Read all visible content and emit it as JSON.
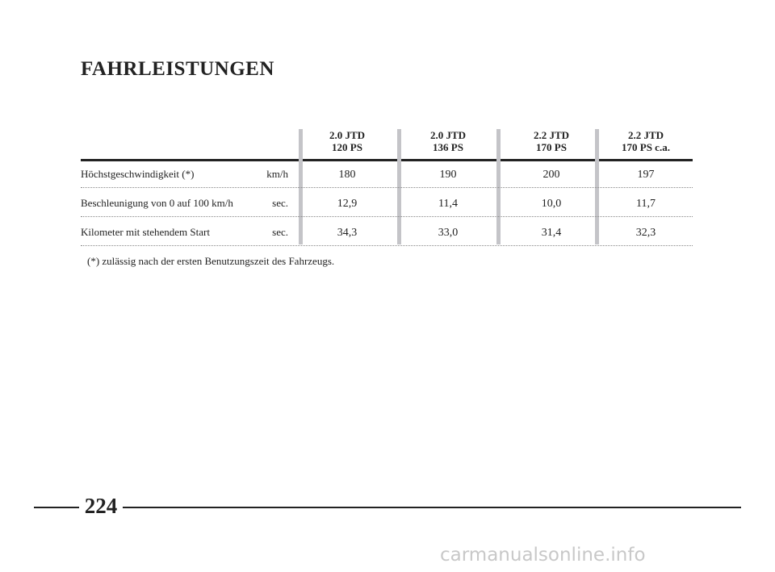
{
  "title": "FAHRLEISTUNGEN",
  "table": {
    "columns": [
      [
        "2.0 JTD",
        "120 PS"
      ],
      [
        "2.0 JTD",
        "136 PS"
      ],
      [
        "2.2 JTD",
        "170 PS"
      ],
      [
        "2.2 JTD",
        "170 PS c.a."
      ]
    ],
    "rows": [
      {
        "label": "Höchstgeschwindigkeit (*)",
        "unit": "km/h",
        "values": [
          "180",
          "190",
          "200",
          "197"
        ]
      },
      {
        "label": "Beschleunigung von 0 auf 100 km/h",
        "unit": "sec.",
        "values": [
          "12,9",
          "11,4",
          "10,0",
          "11,7"
        ]
      },
      {
        "label": "Kilometer mit stehendem Start",
        "unit": "sec.",
        "values": [
          "34,3",
          "33,0",
          "31,4",
          "32,3"
        ]
      }
    ]
  },
  "footnote": "(*) zulässig nach der ersten Benutzungszeit des Fahrzeugs.",
  "page_number": "224",
  "watermark": "carmanualsonline.info"
}
